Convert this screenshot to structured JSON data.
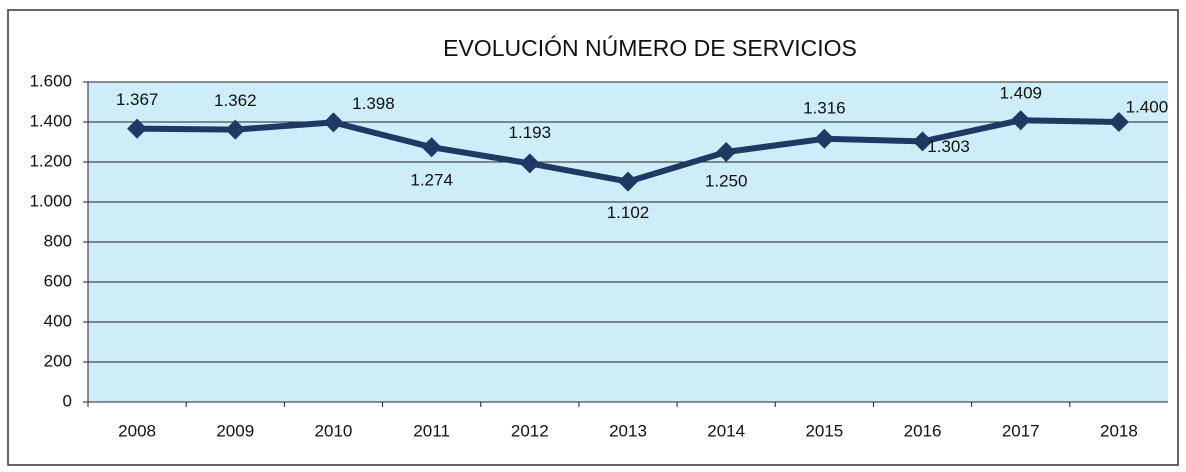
{
  "chart_data": {
    "type": "line",
    "title": "EVOLUCIÓN NÚMERO DE SERVICIOS",
    "categories": [
      "2008",
      "2009",
      "2010",
      "2011",
      "2012",
      "2013",
      "2014",
      "2015",
      "2016",
      "2017",
      "2018"
    ],
    "values": [
      1367,
      1362,
      1398,
      1274,
      1193,
      1102,
      1250,
      1316,
      1303,
      1409,
      1400
    ],
    "value_labels": [
      "1.367",
      "1.362",
      "1.398",
      "1.274",
      "1.193",
      "1.102",
      "1.250",
      "1.316",
      "1.303",
      "1.409",
      "1.400"
    ],
    "color": "#1f3864",
    "ylim": [
      0,
      1600
    ],
    "yticks": [
      0,
      200,
      400,
      600,
      800,
      {
        "value": 1000,
        "label": "1.000"
      },
      {
        "value": 1200,
        "label": "1.200"
      },
      {
        "value": 1400,
        "label": "1.400"
      },
      {
        "value": 1600,
        "label": "1.600"
      }
    ],
    "grid": true
  }
}
